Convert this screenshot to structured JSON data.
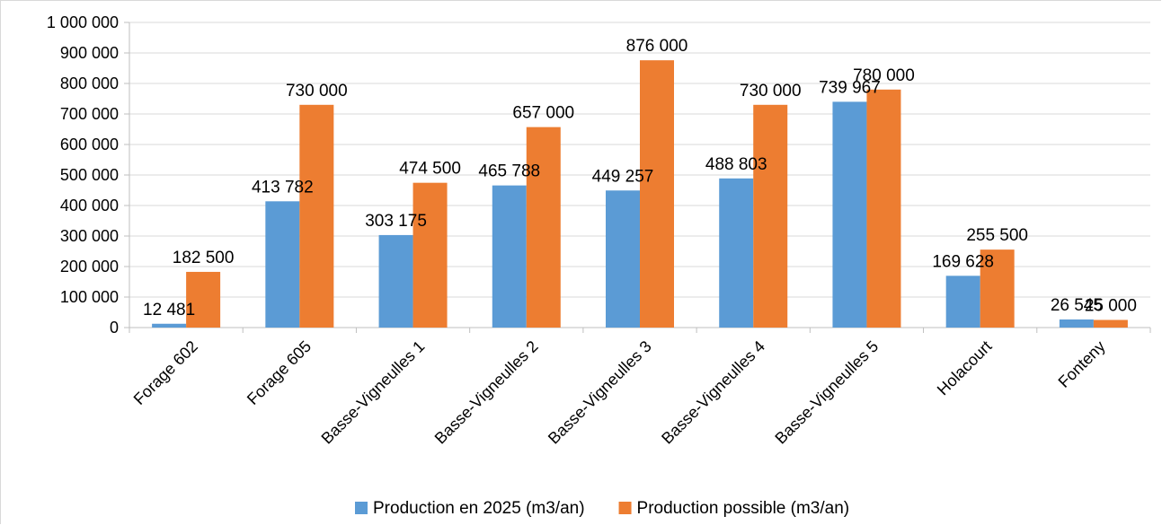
{
  "chart_data": {
    "type": "bar",
    "title": "",
    "xlabel": "",
    "ylabel": "",
    "ylim": [
      0,
      1000000
    ],
    "y_ticks": [
      "0",
      "100 000",
      "200 000",
      "300 000",
      "400 000",
      "500 000",
      "600 000",
      "700 000",
      "800 000",
      "900 000",
      "1 000 000"
    ],
    "grid": true,
    "legend_position": "bottom",
    "categories": [
      "Forage 602",
      "Forage 605",
      "Basse-Vigneulles 1",
      "Basse-Vigneulles 2",
      "Basse-Vigneulles 3",
      "Basse-Vigneulles 4",
      "Basse-Vigneulles 5",
      "Holacourt",
      "Fonteny"
    ],
    "series": [
      {
        "name": "Production en 2025 (m3/an)",
        "color": "#5b9bd5",
        "values": [
          12481,
          413782,
          303175,
          465788,
          449257,
          488803,
          739967,
          169628,
          26545
        ],
        "labels": [
          "12 481",
          "413 782",
          "303 175",
          "465 788",
          "449 257",
          "488 803",
          "739 967",
          "169 628",
          "26 545"
        ]
      },
      {
        "name": "Production possible (m3/an)",
        "color": "#ed7d31",
        "values": [
          182500,
          730000,
          474500,
          657000,
          876000,
          730000,
          780000,
          255500,
          25000
        ],
        "labels": [
          "182 500",
          "730 000",
          "474 500",
          "657 000",
          "876 000",
          "730 000",
          "780 000",
          "255 500",
          "25 000"
        ]
      }
    ]
  }
}
